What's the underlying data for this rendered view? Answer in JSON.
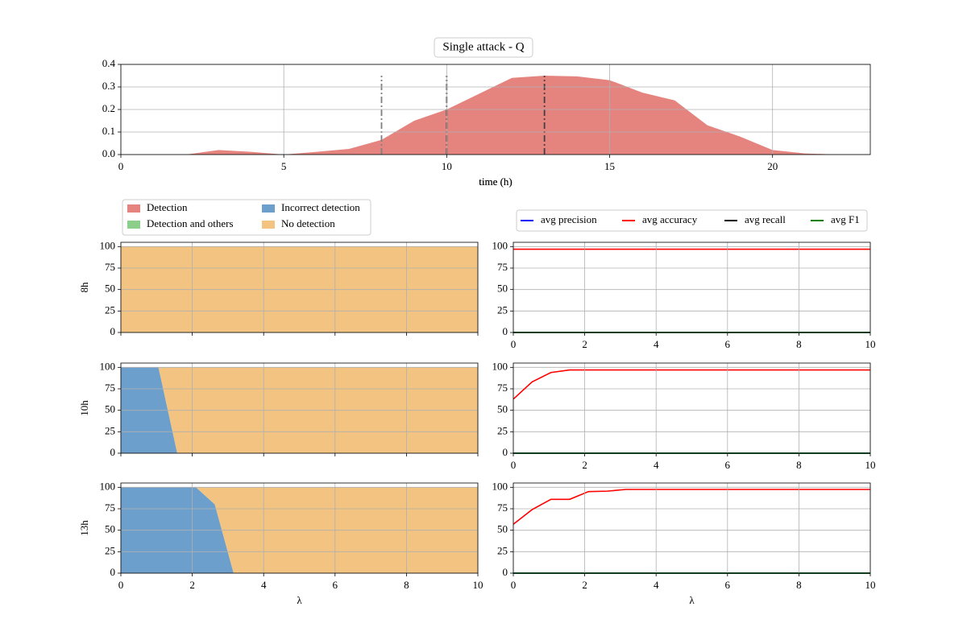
{
  "chart_data": [
    {
      "type": "area",
      "title": "Single attack - Q",
      "xlabel": "time (h)",
      "color": "#e5847f",
      "x": [
        1,
        2,
        3,
        4,
        5,
        6,
        7,
        8,
        9,
        10,
        11,
        12,
        13,
        14,
        15,
        16,
        17,
        18,
        19,
        20,
        21,
        22,
        23
      ],
      "values": [
        0,
        0,
        0.02,
        0.012,
        0,
        0.012,
        0.025,
        0.065,
        0.15,
        0.2,
        0.27,
        0.34,
        0.35,
        0.347,
        0.33,
        0.275,
        0.24,
        0.13,
        0.08,
        0.02,
        0.005,
        0,
        0
      ],
      "vlines": [
        8,
        10,
        13
      ],
      "vline_top": 0.35,
      "vline_colors": [
        "#7f7f7f",
        "#404040",
        "#404040"
      ],
      "xlim": [
        0,
        23
      ],
      "ylim": [
        0,
        0.4
      ],
      "xticks": [
        0,
        5,
        10,
        15,
        20
      ],
      "yticks": [
        {
          "value": 0,
          "label": "0.0"
        },
        {
          "value": 0.1,
          "label": "0.1"
        },
        {
          "value": 0.2,
          "label": "0.2"
        },
        {
          "value": 0.3,
          "label": "0.3"
        },
        {
          "value": 0.4,
          "label": "0.4"
        }
      ],
      "grid": true
    },
    {
      "type": "stackplot",
      "ylabel": "8h",
      "xtick_labels": false,
      "x": [
        0,
        0.526,
        1.053,
        1.579,
        2.105,
        2.632,
        3.158,
        3.684,
        4.211,
        4.737,
        5.263,
        5.789,
        6.316,
        6.842,
        7.368,
        7.895,
        8.421,
        8.947,
        9.474,
        10
      ],
      "series": [
        {
          "name": "Detection",
          "color": "#e5847f",
          "values": [
            0,
            0,
            0,
            0,
            0,
            0,
            0,
            0,
            0,
            0,
            0,
            0,
            0,
            0,
            0,
            0,
            0,
            0,
            0,
            0
          ]
        },
        {
          "name": "Detection and others",
          "color": "#8bcf8b",
          "values": [
            0,
            0,
            0,
            0,
            0,
            0,
            0,
            0,
            0,
            0,
            0,
            0,
            0,
            0,
            0,
            0,
            0,
            0,
            0,
            0
          ]
        },
        {
          "name": "Incorrect detection",
          "color": "#6d9fcd",
          "values": [
            0,
            0,
            0,
            0,
            0,
            0,
            0,
            0,
            0,
            0,
            0,
            0,
            0,
            0,
            0,
            0,
            0,
            0,
            0,
            0
          ]
        },
        {
          "name": "No detection",
          "color": "#f3c381",
          "values": [
            100,
            100,
            100,
            100,
            100,
            100,
            100,
            100,
            100,
            100,
            100,
            100,
            100,
            100,
            100,
            100,
            100,
            100,
            100,
            100
          ]
        }
      ],
      "xlim": [
        0,
        10
      ],
      "ylim": [
        0,
        105
      ],
      "xticks": [
        0,
        2,
        4,
        6,
        8,
        10
      ],
      "yticks": [
        0,
        25,
        50,
        75,
        100
      ],
      "grid": true
    },
    {
      "type": "stackplot",
      "ylabel": "10h",
      "xtick_labels": false,
      "x": [
        0,
        0.526,
        1.053,
        1.579,
        2.105,
        2.632,
        3.158,
        3.684,
        4.211,
        4.737,
        5.263,
        5.789,
        6.316,
        6.842,
        7.368,
        7.895,
        8.421,
        8.947,
        9.474,
        10
      ],
      "series": [
        {
          "color": "#e5847f",
          "values": [
            0,
            0,
            0,
            0,
            0,
            0,
            0,
            0,
            0,
            0,
            0,
            0,
            0,
            0,
            0,
            0,
            0,
            0,
            0,
            0
          ]
        },
        {
          "color": "#8bcf8b",
          "values": [
            0,
            0,
            0,
            0,
            0,
            0,
            0,
            0,
            0,
            0,
            0,
            0,
            0,
            0,
            0,
            0,
            0,
            0,
            0,
            0
          ]
        },
        {
          "color": "#6d9fcd",
          "values": [
            100,
            100,
            100,
            0,
            0,
            0,
            0,
            0,
            0,
            0,
            0,
            0,
            0,
            0,
            0,
            0,
            0,
            0,
            0,
            0
          ]
        },
        {
          "color": "#f3c381",
          "values": [
            0,
            0,
            0,
            100,
            100,
            100,
            100,
            100,
            100,
            100,
            100,
            100,
            100,
            100,
            100,
            100,
            100,
            100,
            100,
            100
          ]
        }
      ],
      "xlim": [
        0,
        10
      ],
      "ylim": [
        0,
        105
      ],
      "xticks": [
        0,
        2,
        4,
        6,
        8,
        10
      ],
      "yticks": [
        0,
        25,
        50,
        75,
        100
      ],
      "grid": true
    },
    {
      "type": "stackplot",
      "ylabel": "13h",
      "xlabel": "λ",
      "xtick_labels": true,
      "x": [
        0,
        0.526,
        1.053,
        1.579,
        2.105,
        2.632,
        3.158,
        3.684,
        4.211,
        4.737,
        5.263,
        5.789,
        6.316,
        6.842,
        7.368,
        7.895,
        8.421,
        8.947,
        9.474,
        10
      ],
      "series": [
        {
          "color": "#e5847f",
          "values": [
            0,
            0,
            0,
            0,
            0,
            0,
            0,
            0,
            0,
            0,
            0,
            0,
            0,
            0,
            0,
            0,
            0,
            0,
            0,
            0
          ]
        },
        {
          "color": "#8bcf8b",
          "values": [
            0,
            0,
            0,
            0,
            0,
            0,
            0,
            0,
            0,
            0,
            0,
            0,
            0,
            0,
            0,
            0,
            0,
            0,
            0,
            0
          ]
        },
        {
          "color": "#6d9fcd",
          "values": [
            100,
            100,
            100,
            100,
            100,
            80,
            0,
            0,
            0,
            0,
            0,
            0,
            0,
            0,
            0,
            0,
            0,
            0,
            0,
            0
          ]
        },
        {
          "color": "#f3c381",
          "values": [
            0,
            0,
            0,
            0,
            0,
            20,
            100,
            100,
            100,
            100,
            100,
            100,
            100,
            100,
            100,
            100,
            100,
            100,
            100,
            100
          ]
        }
      ],
      "xlim": [
        0,
        10
      ],
      "ylim": [
        0,
        105
      ],
      "xticks": [
        0,
        2,
        4,
        6,
        8,
        10
      ],
      "yticks": [
        0,
        25,
        50,
        75,
        100
      ],
      "grid": true
    },
    {
      "type": "line",
      "xtick_labels": true,
      "x": [
        0,
        0.526,
        1.053,
        1.579,
        2.105,
        2.632,
        3.158,
        3.684,
        4.211,
        4.737,
        5.263,
        5.789,
        6.316,
        6.842,
        7.368,
        7.895,
        8.421,
        8.947,
        9.474,
        10
      ],
      "series": [
        {
          "name": "avg precision",
          "color": "#0000ff",
          "values": [
            0,
            0,
            0,
            0,
            0,
            0,
            0,
            0,
            0,
            0,
            0,
            0,
            0,
            0,
            0,
            0,
            0,
            0,
            0,
            0
          ]
        },
        {
          "name": "avg accuracy",
          "color": "#ff0000",
          "values": [
            97,
            97,
            97,
            97,
            97,
            97,
            97,
            97,
            97,
            97,
            97,
            97,
            97,
            97,
            97,
            97,
            97,
            97,
            97,
            97
          ]
        },
        {
          "name": "avg recall",
          "color": "#000000",
          "values": [
            0,
            0,
            0,
            0,
            0,
            0,
            0,
            0,
            0,
            0,
            0,
            0,
            0,
            0,
            0,
            0,
            0,
            0,
            0,
            0
          ]
        },
        {
          "name": "avg F1",
          "color": "#008000",
          "values": [
            0,
            0,
            0,
            0,
            0,
            0,
            0,
            0,
            0,
            0,
            0,
            0,
            0,
            0,
            0,
            0,
            0,
            0,
            0,
            0
          ]
        }
      ],
      "xlim": [
        0,
        10
      ],
      "ylim": [
        0,
        105
      ],
      "xticks": [
        0,
        2,
        4,
        6,
        8,
        10
      ],
      "yticks": [
        0,
        25,
        50,
        75,
        100
      ],
      "grid": true
    },
    {
      "type": "line",
      "xtick_labels": true,
      "x": [
        0,
        0.526,
        1.053,
        1.579,
        2.105,
        2.632,
        3.158,
        3.684,
        4.211,
        4.737,
        5.263,
        5.789,
        6.316,
        6.842,
        7.368,
        7.895,
        8.421,
        8.947,
        9.474,
        10
      ],
      "series": [
        {
          "color": "#0000ff",
          "values": [
            0,
            0,
            0,
            0,
            0,
            0,
            0,
            0,
            0,
            0,
            0,
            0,
            0,
            0,
            0,
            0,
            0,
            0,
            0,
            0
          ]
        },
        {
          "color": "#ff0000",
          "values": [
            63,
            83,
            94,
            97,
            97,
            97,
            97,
            97,
            97,
            97,
            97,
            97,
            97,
            97,
            97,
            97,
            97,
            97,
            97,
            97
          ]
        },
        {
          "color": "#000000",
          "values": [
            0,
            0,
            0,
            0,
            0,
            0,
            0,
            0,
            0,
            0,
            0,
            0,
            0,
            0,
            0,
            0,
            0,
            0,
            0,
            0
          ]
        },
        {
          "color": "#008000",
          "values": [
            0,
            0,
            0,
            0,
            0,
            0,
            0,
            0,
            0,
            0,
            0,
            0,
            0,
            0,
            0,
            0,
            0,
            0,
            0,
            0
          ]
        }
      ],
      "xlim": [
        0,
        10
      ],
      "ylim": [
        0,
        105
      ],
      "xticks": [
        0,
        2,
        4,
        6,
        8,
        10
      ],
      "yticks": [
        0,
        25,
        50,
        75,
        100
      ],
      "grid": true
    },
    {
      "type": "line",
      "xlabel": "λ",
      "xtick_labels": true,
      "x": [
        0,
        0.526,
        1.053,
        1.579,
        2.105,
        2.632,
        3.158,
        3.684,
        4.211,
        4.737,
        5.263,
        5.789,
        6.316,
        6.842,
        7.368,
        7.895,
        8.421,
        8.947,
        9.474,
        10
      ],
      "series": [
        {
          "color": "#0000ff",
          "values": [
            0,
            0,
            0,
            0,
            0,
            0,
            0,
            0,
            0,
            0,
            0,
            0,
            0,
            0,
            0,
            0,
            0,
            0,
            0,
            0
          ]
        },
        {
          "color": "#ff0000",
          "values": [
            57,
            74,
            86,
            86,
            95,
            95.5,
            97.5,
            97.5,
            97.5,
            97.5,
            97.5,
            97.5,
            97.5,
            97.5,
            97.5,
            97.5,
            97.5,
            97.5,
            97.5,
            97.5
          ]
        },
        {
          "color": "#000000",
          "values": [
            0,
            0,
            0,
            0,
            0,
            0,
            0,
            0,
            0,
            0,
            0,
            0,
            0,
            0,
            0,
            0,
            0,
            0,
            0,
            0
          ]
        },
        {
          "color": "#008000",
          "values": [
            0,
            0,
            0,
            0,
            0,
            0,
            0,
            0,
            0,
            0,
            0,
            0,
            0,
            0,
            0,
            0,
            0,
            0,
            0,
            0
          ]
        }
      ],
      "xlim": [
        0,
        10
      ],
      "ylim": [
        0,
        105
      ],
      "xticks": [
        0,
        2,
        4,
        6,
        8,
        10
      ],
      "yticks": [
        0,
        25,
        50,
        75,
        100
      ],
      "grid": true
    }
  ]
}
